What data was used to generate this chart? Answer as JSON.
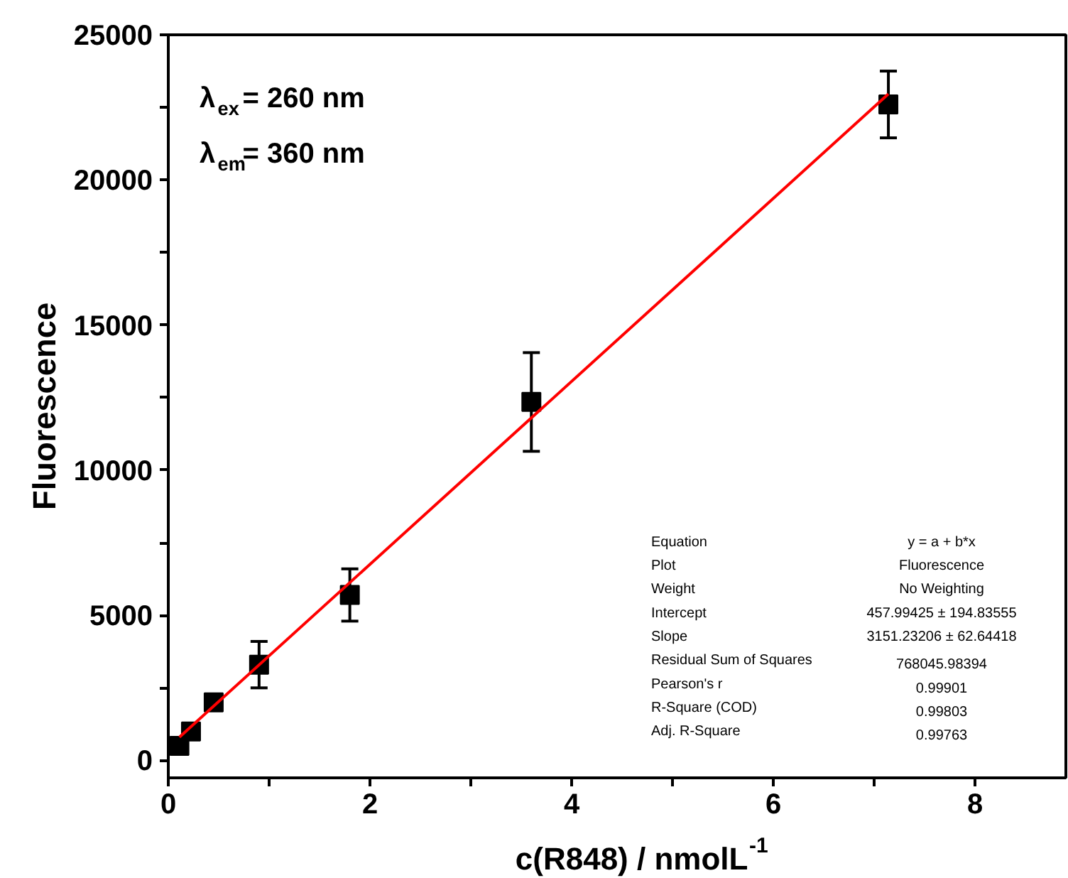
{
  "chart_data": {
    "type": "scatter",
    "xlabel": "c(R848) / nmolL$^{-1}$",
    "ylabel": "Fluorescence",
    "x": [
      0.11,
      0.225,
      0.45,
      0.9,
      1.8,
      3.6,
      7.14
    ],
    "series": [
      {
        "color": "#000000",
        "values": [
          500,
          1000,
          2000,
          3300,
          5700,
          12350,
          22600
        ],
        "errors": [
          200,
          200,
          250,
          800,
          900,
          1700,
          1150
        ],
        "marker": "square"
      },
      {
        "type": "line",
        "color": "#ff0000",
        "x": [
          0.11,
          7.14
        ],
        "values": [
          800,
          22960
        ],
        "marker": "none"
      }
    ],
    "xlim": [
      0,
      8.9
    ],
    "ylim": [
      -600,
      25000
    ],
    "xticks": [
      0,
      {
        "value": 1,
        "label": null
      },
      2,
      {
        "value": 3,
        "label": null
      },
      4,
      {
        "value": 5,
        "label": null
      },
      6,
      {
        "value": 7,
        "label": null
      },
      8
    ],
    "yticks": [
      0,
      {
        "value": 2500,
        "label": null
      },
      5000,
      {
        "value": 7500,
        "label": null
      },
      10000,
      {
        "value": 12500,
        "label": null
      },
      15000,
      {
        "value": 17500,
        "label": null
      },
      20000,
      {
        "value": 22500,
        "label": null
      },
      25000
    ],
    "grid": false,
    "annotations": [
      "λ$_{ex}$= 260 nm",
      "λ$_{em}$= 360 nm",
      "Equation",
      "y = a + b*x",
      "Plot",
      "Fluorescence",
      "Weight",
      "No Weighting",
      "Intercept",
      "457.99425 ± 194.83555",
      "Slope",
      "3151.23206 ± 62.64418",
      "Residual Sum of Squares",
      "768045.98394",
      "Pearson's r",
      "0.99901",
      "R-Square (COD)",
      "0.99803",
      "Adj. R-Square",
      "0.99763"
    ]
  }
}
